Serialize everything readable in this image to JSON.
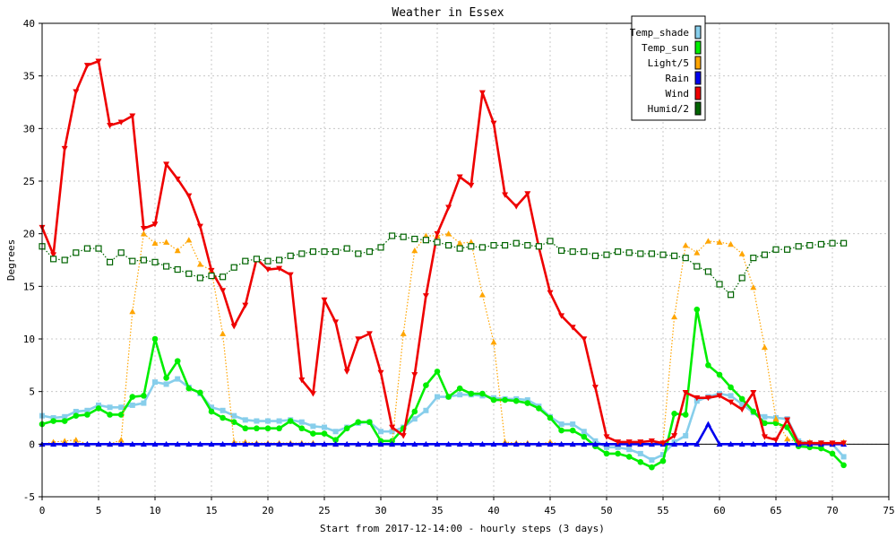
{
  "chart_data": {
    "type": "line",
    "title": "Weather in Essex",
    "xlabel": "Start from 2017-12-14:00 - hourly steps (3 days)",
    "ylabel": "Degrees",
    "xlim": [
      0,
      75
    ],
    "ylim": [
      -5,
      40
    ],
    "x_ticks": [
      "0",
      "5",
      "10",
      "15",
      "20",
      "25",
      "30",
      "35",
      "40",
      "45",
      "50",
      "55",
      "60",
      "65",
      "70",
      "75"
    ],
    "y_ticks": [
      "-5",
      "0",
      "5",
      "10",
      "15",
      "20",
      "25",
      "30",
      "35",
      "40"
    ],
    "grid": true,
    "legend_position": "top-right",
    "x": [
      0,
      1,
      2,
      3,
      4,
      5,
      6,
      7,
      8,
      9,
      10,
      11,
      12,
      13,
      14,
      15,
      16,
      17,
      18,
      19,
      20,
      21,
      22,
      23,
      24,
      25,
      26,
      27,
      28,
      29,
      30,
      31,
      32,
      33,
      34,
      35,
      36,
      37,
      38,
      39,
      40,
      41,
      42,
      43,
      44,
      45,
      46,
      47,
      48,
      49,
      50,
      51,
      52,
      53,
      54,
      55,
      56,
      57,
      58,
      59,
      60,
      61,
      62,
      63,
      64,
      65,
      66,
      67,
      68,
      69,
      70,
      71
    ],
    "series": [
      {
        "name": "Temp_shade",
        "color": "#87ceeb",
        "marker": "square",
        "line_style": "solid",
        "values": [
          2.7,
          2.5,
          2.6,
          3.1,
          3.2,
          3.7,
          3.5,
          3.5,
          3.7,
          3.9,
          5.9,
          5.7,
          6.2,
          5.4,
          4.8,
          3.5,
          3.2,
          2.7,
          2.3,
          2.2,
          2.2,
          2.2,
          2.3,
          2.1,
          1.7,
          1.6,
          1.2,
          1.6,
          2.0,
          2.1,
          1.2,
          1.2,
          1.6,
          2.4,
          3.2,
          4.5,
          4.5,
          4.7,
          4.7,
          4.6,
          4.4,
          4.3,
          4.3,
          4.2,
          3.6,
          2.6,
          1.9,
          1.9,
          1.2,
          0.3,
          -0.3,
          -0.3,
          -0.5,
          -0.9,
          -1.5,
          -1.0,
          0.2,
          0.8,
          4.1,
          4.5,
          4.8,
          4.6,
          3.8,
          3.0,
          2.6,
          2.5,
          2.4,
          0.3,
          0.1,
          0.1,
          0.0,
          -1.2
        ]
      },
      {
        "name": "Temp_sun",
        "color": "#00ee00",
        "marker": "circle",
        "line_style": "solid",
        "values": [
          1.9,
          2.2,
          2.2,
          2.7,
          2.8,
          3.4,
          2.8,
          2.8,
          4.5,
          4.6,
          10.0,
          6.3,
          7.9,
          5.3,
          4.9,
          3.1,
          2.5,
          2.1,
          1.5,
          1.5,
          1.5,
          1.5,
          2.2,
          1.5,
          1.0,
          1.0,
          0.4,
          1.5,
          2.1,
          2.1,
          0.3,
          0.3,
          1.5,
          3.1,
          5.6,
          6.9,
          4.5,
          5.3,
          4.8,
          4.8,
          4.2,
          4.2,
          4.1,
          3.9,
          3.4,
          2.5,
          1.3,
          1.3,
          0.7,
          -0.2,
          -0.9,
          -0.9,
          -1.2,
          -1.7,
          -2.2,
          -1.6,
          2.9,
          2.8,
          12.8,
          7.5,
          6.6,
          5.4,
          4.3,
          3.1,
          2.0,
          2.0,
          1.6,
          -0.2,
          -0.3,
          -0.4,
          -0.9,
          -2.0
        ]
      },
      {
        "name": "Light/5",
        "color": "#ffa500",
        "marker": "triangle",
        "line_style": "dotted",
        "values": [
          0,
          0.2,
          0.3,
          0.4,
          0,
          0,
          0,
          0.4,
          12.6,
          20.0,
          19.1,
          19.2,
          18.4,
          19.4,
          17.1,
          16.5,
          10.5,
          0.2,
          0.2,
          0.1,
          0.1,
          0.1,
          0.1,
          0.1,
          0.1,
          0,
          0,
          0,
          0,
          0,
          0,
          0,
          10.5,
          18.4,
          19.8,
          19.8,
          20.0,
          19.1,
          19.2,
          14.2,
          9.7,
          0.2,
          0.1,
          0.1,
          0,
          0.2,
          0,
          0,
          0,
          0,
          0,
          0,
          0,
          0,
          0,
          0.2,
          12.1,
          18.9,
          18.2,
          19.3,
          19.2,
          19.0,
          18.1,
          14.9,
          9.2,
          2.4,
          0.5,
          0.2,
          0.2,
          0.1,
          0,
          0.2
        ]
      },
      {
        "name": "Rain",
        "color": "#0000ee",
        "marker": "triangle",
        "line_style": "solid",
        "values": [
          0,
          0,
          0,
          0,
          0,
          0,
          0,
          0,
          0,
          0,
          0,
          0,
          0,
          0,
          0,
          0,
          0,
          0,
          0,
          0,
          0,
          0,
          0,
          0,
          0,
          0,
          0,
          0,
          0,
          0,
          0,
          0,
          0,
          0,
          0,
          0,
          0,
          0,
          0,
          0,
          0,
          0,
          0,
          0,
          0,
          0,
          0,
          0,
          0,
          0,
          0,
          0,
          0,
          0,
          0,
          0,
          0,
          0,
          0,
          1.9,
          0,
          0,
          0,
          0,
          0,
          0,
          0,
          0,
          0,
          0,
          0,
          0
        ]
      },
      {
        "name": "Wind",
        "color": "#ee0000",
        "marker": "triangle-down",
        "line_style": "solid",
        "values": [
          20.6,
          18.0,
          28.1,
          33.5,
          36.0,
          36.4,
          30.3,
          30.6,
          31.2,
          20.5,
          20.9,
          26.6,
          25.2,
          23.6,
          20.7,
          16.5,
          14.6,
          11.2,
          13.2,
          17.6,
          16.6,
          16.7,
          16.1,
          6.1,
          4.8,
          13.7,
          11.6,
          6.9,
          10.0,
          10.5,
          6.8,
          1.6,
          0.8,
          6.6,
          14.1,
          20.0,
          22.5,
          25.4,
          24.6,
          33.4,
          30.5,
          23.7,
          22.6,
          23.8,
          18.7,
          14.4,
          12.2,
          11.1,
          10.0,
          5.4,
          0.7,
          0.2,
          0.2,
          0.2,
          0.3,
          0.1,
          0.8,
          4.9,
          4.4,
          4.4,
          4.6,
          4.0,
          3.3,
          4.9,
          0.7,
          0.4,
          2.3,
          0.1,
          0.1,
          0.1,
          0.1,
          0.1
        ]
      },
      {
        "name": "Humid/2",
        "color": "#006400",
        "marker": "square-open",
        "line_style": "dotted",
        "values": [
          18.8,
          17.6,
          17.5,
          18.2,
          18.6,
          18.6,
          17.3,
          18.2,
          17.4,
          17.5,
          17.3,
          16.9,
          16.6,
          16.2,
          15.8,
          16.0,
          15.9,
          16.8,
          17.4,
          17.6,
          17.4,
          17.5,
          17.9,
          18.1,
          18.3,
          18.3,
          18.3,
          18.6,
          18.1,
          18.3,
          18.7,
          19.8,
          19.7,
          19.5,
          19.4,
          19.2,
          18.9,
          18.6,
          18.8,
          18.7,
          18.9,
          18.9,
          19.1,
          18.9,
          18.8,
          19.3,
          18.4,
          18.3,
          18.3,
          17.9,
          18.0,
          18.3,
          18.2,
          18.1,
          18.1,
          18.0,
          17.9,
          17.7,
          16.9,
          16.4,
          15.2,
          14.2,
          15.8,
          17.7,
          18.0,
          18.5,
          18.5,
          18.8,
          18.9,
          19.0,
          19.1,
          19.1
        ]
      }
    ]
  }
}
